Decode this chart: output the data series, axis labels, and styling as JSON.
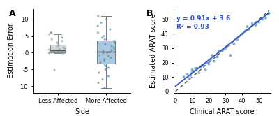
{
  "panel_A": {
    "title": "A",
    "xlabel": "Side",
    "ylabel": "Estimation Error",
    "categories": [
      "Less Affected",
      "More Affected"
    ],
    "less_affected_points": [
      0.05,
      0.1,
      0.2,
      0.3,
      -0.1,
      0.0,
      0.15,
      -0.05,
      0.25,
      0.4,
      0.8,
      1.0,
      1.2,
      1.5,
      0.9,
      2.0,
      2.5,
      3.0,
      3.5,
      4.0,
      4.5,
      5.5,
      6.0,
      6.0,
      -5.2,
      0.6,
      0.7,
      -0.2,
      0.5,
      0.1
    ],
    "more_affected_points": [
      0.2,
      -0.1,
      0.5,
      1.0,
      -1.0,
      1.5,
      -1.5,
      2.0,
      -2.0,
      2.5,
      -2.5,
      3.0,
      -3.0,
      3.5,
      -3.5,
      4.0,
      -4.0,
      5.0,
      -5.0,
      6.0,
      -6.0,
      7.0,
      -7.0,
      8.0,
      -8.0,
      9.0,
      -9.0,
      10.0,
      -10.5,
      11.0,
      0.0,
      0.8,
      -0.8,
      4.5,
      -4.5
    ],
    "less_box_color": "#d8d8d8",
    "more_box_color": "#aac8e0",
    "less_point_color": "#7a9a9a",
    "more_point_color": "#4d8aaa",
    "ylim": [
      -12,
      13
    ],
    "yticks": [
      -10,
      -5,
      0,
      5,
      10
    ]
  },
  "panel_B": {
    "title": "B",
    "xlabel": "Clinical ARAT score",
    "ylabel": "Estimated ARAT score",
    "equation": "y = 0.91x + 3.6",
    "r_squared": "R² = 0.93",
    "slope": 0.91,
    "intercept": 3.6,
    "xlim": [
      -1,
      57
    ],
    "ylim": [
      -1,
      57
    ],
    "xticks": [
      0,
      10,
      20,
      30,
      40,
      50
    ],
    "yticks": [
      0,
      10,
      20,
      30,
      40,
      50
    ],
    "scatter_x": [
      5,
      7,
      8,
      9,
      10,
      10,
      11,
      12,
      13,
      14,
      15,
      16,
      17,
      18,
      19,
      20,
      21,
      22,
      23,
      25,
      26,
      28,
      30,
      32,
      33,
      35,
      37,
      38,
      40,
      42,
      43,
      44,
      46,
      48,
      50,
      52,
      54,
      56
    ],
    "scatter_y": [
      10,
      12,
      9,
      11,
      13,
      15,
      14,
      16,
      16,
      13,
      17,
      18,
      18,
      15,
      20,
      19,
      22,
      25,
      21,
      24,
      28,
      28,
      30,
      32,
      25,
      33,
      36,
      38,
      40,
      42,
      45,
      43,
      47,
      46,
      48,
      50,
      51,
      54
    ],
    "point_color": "#5599bb",
    "line_color": "#3355cc",
    "annotation_color": "#3355cc"
  },
  "bg_color": "#ffffff",
  "tick_fontsize": 6,
  "label_fontsize": 7,
  "title_fontsize": 9
}
